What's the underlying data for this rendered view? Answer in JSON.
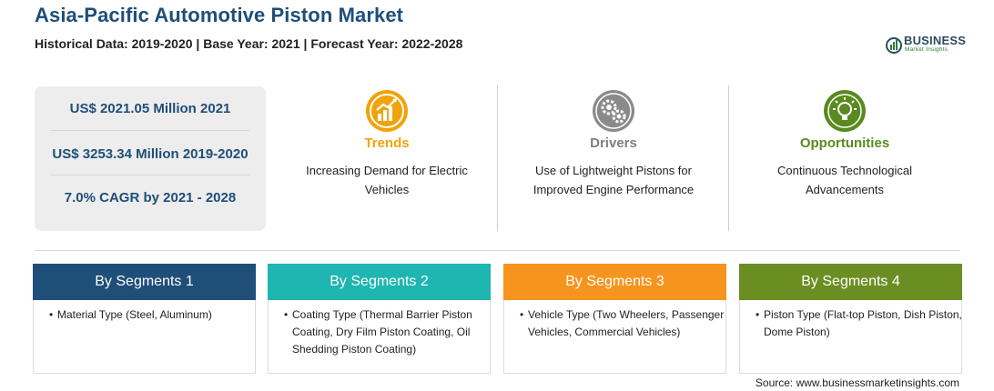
{
  "header": {
    "title": "Asia-Pacific Automotive Piston Market",
    "subtitle": "Historical Data: 2019-2020 | Base Year: 2021 | Forecast Year: 2022-2028"
  },
  "logo": {
    "name": "BUSINESS",
    "tagline": "Market Insights"
  },
  "stats": [
    "US$ 2021.05 Million 2021",
    "US$ 3253.34 Million 2019-2020",
    "7.0% CAGR by 2021 - 2028"
  ],
  "features": [
    {
      "title": "Trends",
      "description": "Increasing Demand for Electric Vehicles",
      "color": "#f0a30a",
      "icon": "trend-chart-icon"
    },
    {
      "title": "Drivers",
      "description": "Use of Lightweight Pistons for Improved Engine Performance",
      "color": "#7f7f7f",
      "icon": "gears-icon"
    },
    {
      "title": "Opportunities",
      "description": "Continuous Technological Advancements",
      "color": "#5a8a1f",
      "icon": "lightbulb-icon"
    }
  ],
  "segments": [
    {
      "title": "By Segments 1",
      "color": "#1f4e79",
      "item": "Material Type (Steel, Aluminum)"
    },
    {
      "title": "By Segments 2",
      "color": "#1fb5b0",
      "item": "Coating Type (Thermal Barrier Piston Coating, Dry Film Piston Coating, Oil Shedding Piston Coating)"
    },
    {
      "title": "By Segments 3",
      "color": "#f7941d",
      "item": "Vehicle Type (Two Wheelers, Passenger Vehicles, Commercial Vehicles)"
    },
    {
      "title": "By Segments 4",
      "color": "#6b8e23",
      "item": "Piston Type (Flat-top Piston, Dish Piston, Dome Piston)"
    }
  ],
  "source": "Source: www.businessmarketinsights.com"
}
